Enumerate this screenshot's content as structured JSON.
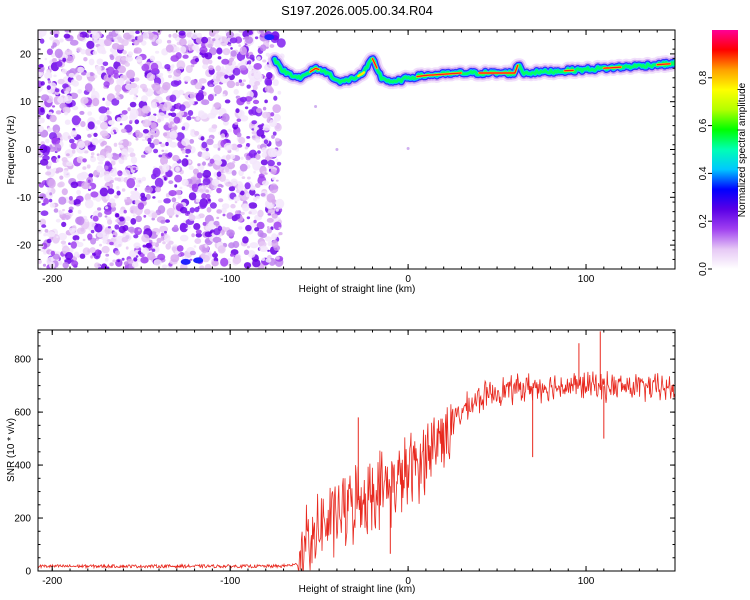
{
  "title": "S197.2026.005.00.34.R04",
  "chart_data": [
    {
      "type": "heatmap",
      "name": "spectrogram",
      "xlabel": "Height of straight line (km)",
      "ylabel": "Frequency (Hz)",
      "xlim": [
        -208,
        150
      ],
      "ylim": [
        -25,
        25
      ],
      "xticks": [
        -200,
        -100,
        0,
        100
      ],
      "yticks": [
        -20,
        -10,
        0,
        10,
        20
      ],
      "noise_region_x": [
        -208,
        -72
      ],
      "signal_band": [
        {
          "x": -75,
          "y": 19
        },
        {
          "x": -72,
          "y": 17
        },
        {
          "x": -68,
          "y": 16
        },
        {
          "x": -60,
          "y": 15
        },
        {
          "x": -52,
          "y": 17
        },
        {
          "x": -45,
          "y": 16
        },
        {
          "x": -38,
          "y": 14
        },
        {
          "x": -30,
          "y": 15
        },
        {
          "x": -25,
          "y": 16
        },
        {
          "x": -20,
          "y": 19
        },
        {
          "x": -15,
          "y": 15
        },
        {
          "x": -8,
          "y": 14
        },
        {
          "x": 0,
          "y": 15
        },
        {
          "x": 10,
          "y": 15.5
        },
        {
          "x": 30,
          "y": 16
        },
        {
          "x": 60,
          "y": 16
        },
        {
          "x": 62,
          "y": 18
        },
        {
          "x": 65,
          "y": 16
        },
        {
          "x": 90,
          "y": 16.5
        },
        {
          "x": 110,
          "y": 17
        },
        {
          "x": 130,
          "y": 17.5
        },
        {
          "x": 150,
          "y": 18
        }
      ],
      "colorbar": {
        "label": "Normalized spectral amplitude",
        "range": [
          0,
          1
        ],
        "ticks": [
          "0.0",
          "0.2",
          "0.4",
          "0.6",
          "0.8"
        ],
        "colors": [
          "#ffffff",
          "#e6c8f5",
          "#a040f0",
          "#5a00e6",
          "#0000ff",
          "#00c8ff",
          "#00ffb4",
          "#00ff00",
          "#b4ff00",
          "#ffff00",
          "#ffa000",
          "#ff0000",
          "#ff0096"
        ]
      }
    },
    {
      "type": "line",
      "name": "snr",
      "xlabel": "Height of straight line (km)",
      "ylabel": "SNR (10 * v/v)",
      "xlim": [
        -208,
        150
      ],
      "ylim": [
        0,
        910
      ],
      "xticks": [
        -200,
        -100,
        0,
        100
      ],
      "yticks": [
        0,
        200,
        400,
        600,
        800
      ],
      "color": "#e8281e",
      "trend": [
        {
          "x": -208,
          "y": 18
        },
        {
          "x": -100,
          "y": 18
        },
        {
          "x": -72,
          "y": 18
        },
        {
          "x": -62,
          "y": 25
        },
        {
          "x": -58,
          "y": 80
        },
        {
          "x": -50,
          "y": 160
        },
        {
          "x": -40,
          "y": 210
        },
        {
          "x": -30,
          "y": 260
        },
        {
          "x": -20,
          "y": 300
        },
        {
          "x": -10,
          "y": 320
        },
        {
          "x": 0,
          "y": 370
        },
        {
          "x": 10,
          "y": 440
        },
        {
          "x": 20,
          "y": 520
        },
        {
          "x": 30,
          "y": 600
        },
        {
          "x": 40,
          "y": 650
        },
        {
          "x": 50,
          "y": 680
        },
        {
          "x": 70,
          "y": 695
        },
        {
          "x": 100,
          "y": 700
        },
        {
          "x": 150,
          "y": 690
        }
      ],
      "spikes": [
        {
          "x": 70,
          "y": 430
        },
        {
          "x": 96,
          "y": 860
        },
        {
          "x": 108,
          "y": 905
        },
        {
          "x": 110,
          "y": 500
        },
        {
          "x": -28,
          "y": 580
        },
        {
          "x": -10,
          "y": 65
        }
      ]
    }
  ]
}
